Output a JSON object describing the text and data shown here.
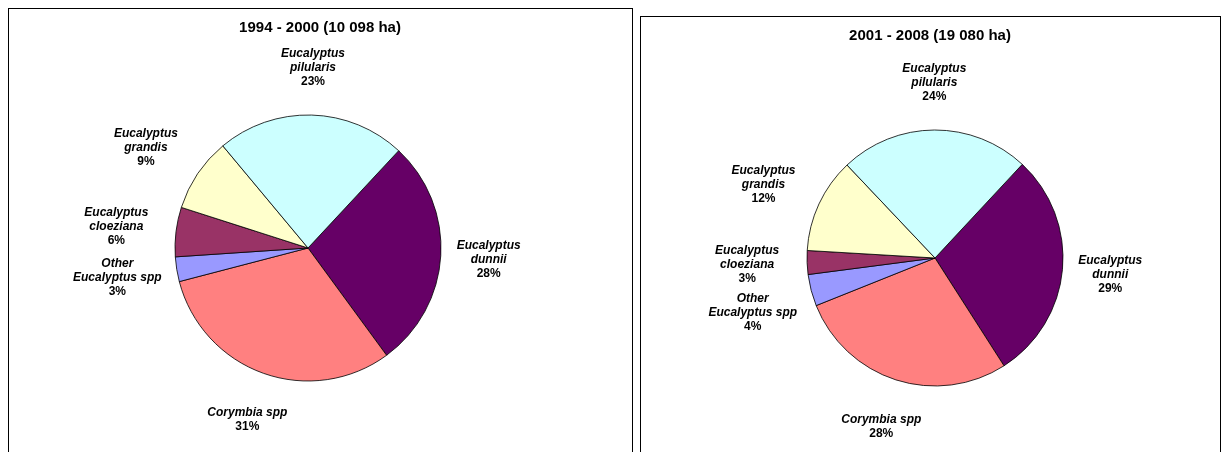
{
  "chart_data": [
    {
      "type": "pie",
      "title": "1994 - 2000 (10 098 ha)",
      "categories": [
        "Eucalyptus dunnii",
        "Corymbia spp",
        "Other Eucalyptus spp",
        "Eucalyptus cloeziana",
        "Eucalyptus grandis",
        "Eucalyptus pilularis"
      ],
      "values": [
        28,
        31,
        3,
        6,
        9,
        23
      ],
      "value_labels": [
        "28%",
        "31%",
        "3%",
        "6%",
        "9%",
        "23%"
      ],
      "colors": [
        "#660066",
        "#ff8080",
        "#9999ff",
        "#993366",
        "#ffffcc",
        "#ccffff"
      ]
    },
    {
      "type": "pie",
      "title": "2001 - 2008 (19 080 ha)",
      "categories": [
        "Eucalyptus dunnii",
        "Corymbia spp",
        "Other Eucalyptus spp",
        "Eucalyptus cloeziana",
        "Eucalyptus grandis",
        "Eucalyptus pilularis"
      ],
      "values": [
        29,
        28,
        4,
        3,
        12,
        24
      ],
      "value_labels": [
        "29%",
        "28%",
        "4%",
        "3%",
        "12%",
        "24%"
      ],
      "colors": [
        "#660066",
        "#ff8080",
        "#9999ff",
        "#993366",
        "#ffffcc",
        "#ccffff"
      ]
    }
  ]
}
